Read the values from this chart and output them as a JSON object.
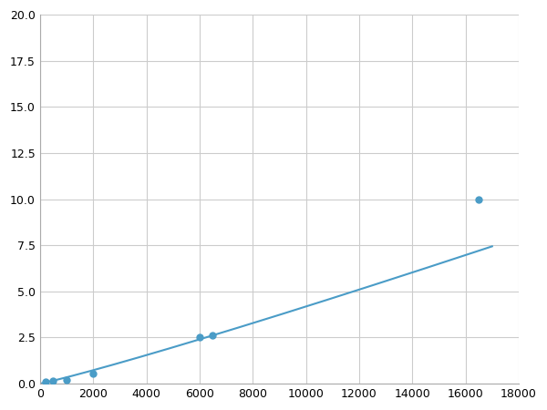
{
  "x": [
    200,
    500,
    1000,
    2000,
    6000,
    6500,
    16500
  ],
  "y": [
    0.1,
    0.15,
    0.2,
    0.55,
    2.5,
    2.6,
    10.0
  ],
  "line_color": "#4a9cc7",
  "marker_color": "#4a9cc7",
  "marker_size": 5,
  "xlim": [
    0,
    18000
  ],
  "ylim": [
    0,
    20.0
  ],
  "xticks": [
    0,
    2000,
    4000,
    6000,
    8000,
    10000,
    12000,
    14000,
    16000,
    18000
  ],
  "yticks": [
    0.0,
    2.5,
    5.0,
    7.5,
    10.0,
    12.5,
    15.0,
    17.5,
    20.0
  ],
  "grid_color": "#cccccc",
  "background_color": "#ffffff",
  "figure_bg": "#ffffff"
}
